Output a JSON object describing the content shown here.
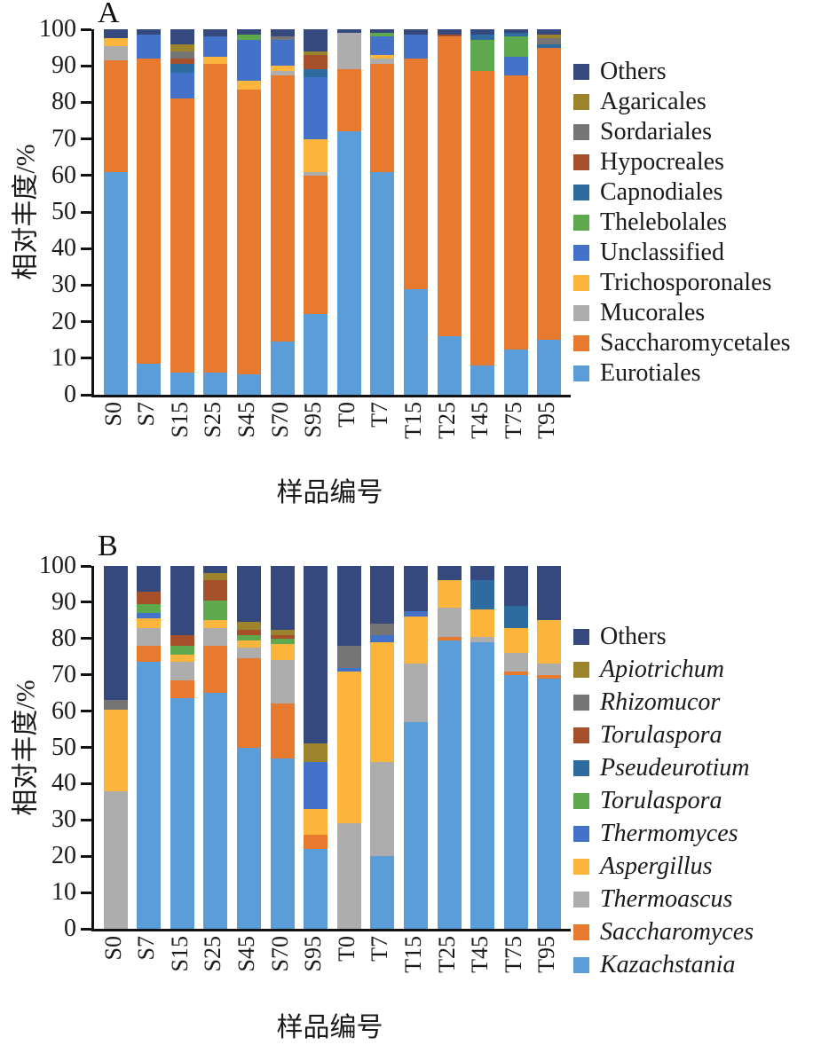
{
  "colors": {
    "navy": "#35497F",
    "olive": "#9C842C",
    "darkgray": "#757575",
    "brick": "#A5502B",
    "steel": "#2E6B9F",
    "green": "#5EA84E",
    "blue": "#4372C8",
    "amber": "#FBB43C",
    "lightgray": "#ADADAD",
    "orange": "#E87A30",
    "lightblue": "#5B9DD8",
    "axis": "#111111"
  },
  "chart_data": [
    {
      "type": "bar",
      "stacked": true,
      "panel_label": "A",
      "ylabel": "相对丰度/%",
      "xlabel": "样品编号",
      "ylim": [
        0,
        100
      ],
      "yticks": [
        0,
        10,
        20,
        30,
        40,
        50,
        60,
        70,
        80,
        90,
        100
      ],
      "grid": false,
      "legend_position": "right",
      "categories": [
        "S0",
        "S7",
        "S15",
        "S25",
        "S45",
        "S70",
        "S95",
        "T0",
        "T7",
        "T15",
        "T25",
        "T45",
        "T75",
        "T95"
      ],
      "series_bottom_to_top": [
        {
          "name": "Eurotiales",
          "color": "lightblue",
          "italic": false,
          "values": [
            61,
            8.5,
            6,
            6,
            5.5,
            14.5,
            22,
            72,
            61,
            29,
            16,
            8,
            12.5,
            15
          ]
        },
        {
          "name": "Saccharomycetales",
          "color": "orange",
          "italic": false,
          "values": [
            30.5,
            83.5,
            75,
            84.5,
            78,
            73,
            38,
            17,
            29.5,
            63,
            82,
            80.5,
            75,
            80
          ]
        },
        {
          "name": "Mucorales",
          "color": "lightgray",
          "italic": false,
          "values": [
            4,
            0,
            0,
            0,
            0,
            1,
            1,
            10,
            1.5,
            0,
            0,
            0,
            0,
            0
          ]
        },
        {
          "name": "Trichosporonales",
          "color": "amber",
          "italic": false,
          "values": [
            2,
            0,
            0,
            2,
            2.5,
            1.5,
            9,
            0,
            1,
            0,
            0,
            0,
            0,
            0
          ]
        },
        {
          "name": "Unclassified",
          "color": "blue",
          "italic": false,
          "values": [
            0,
            6.5,
            7,
            5.5,
            11,
            7,
            17,
            0,
            5,
            6.5,
            0,
            0,
            5,
            0
          ]
        },
        {
          "name": "Thelebolales",
          "color": "green",
          "italic": false,
          "values": [
            0,
            0,
            0,
            0,
            1.5,
            0,
            0,
            0,
            1,
            0,
            0,
            8.5,
            5.5,
            0
          ]
        },
        {
          "name": "Capnodiales",
          "color": "steel",
          "italic": false,
          "values": [
            0,
            0,
            2.5,
            0,
            0,
            0,
            2,
            0,
            0,
            0,
            0,
            1.5,
            1,
            1
          ]
        },
        {
          "name": "Hypocreales",
          "color": "brick",
          "italic": false,
          "values": [
            0,
            0,
            1.5,
            0,
            0,
            0,
            4,
            0,
            0,
            0,
            0.5,
            0,
            0,
            0
          ]
        },
        {
          "name": "Sordariales",
          "color": "darkgray",
          "italic": false,
          "values": [
            0,
            0,
            2,
            0,
            0,
            1,
            0,
            0,
            0,
            0,
            0,
            0,
            0,
            1.5
          ]
        },
        {
          "name": "Agaricales",
          "color": "olive",
          "italic": false,
          "values": [
            0,
            0,
            2,
            0,
            0,
            0,
            1,
            0,
            0,
            0,
            0,
            0,
            0,
            1
          ]
        },
        {
          "name": "Others",
          "color": "navy",
          "italic": false,
          "values": [
            2.5,
            1.5,
            4,
            2,
            1.5,
            2,
            6,
            1,
            1,
            1.5,
            1.5,
            1.5,
            1,
            1.5
          ]
        }
      ]
    },
    {
      "type": "bar",
      "stacked": true,
      "panel_label": "B",
      "ylabel": "相对丰度/%",
      "xlabel": "样品编号",
      "ylim": [
        0,
        100
      ],
      "yticks": [
        0,
        10,
        20,
        30,
        40,
        50,
        60,
        70,
        80,
        90,
        100
      ],
      "grid": false,
      "legend_position": "right",
      "categories": [
        "S0",
        "S7",
        "S15",
        "S25",
        "S45",
        "S70",
        "S95",
        "T0",
        "T7",
        "T15",
        "T25",
        "T45",
        "T75",
        "T95"
      ],
      "series_bottom_to_top": [
        {
          "name": "Kazachstania",
          "color": "lightblue",
          "italic": true,
          "values": [
            0,
            73.5,
            63.5,
            65,
            50,
            47,
            22,
            0,
            20,
            57,
            79.5,
            79,
            70,
            69
          ]
        },
        {
          "name": "Saccharomyces",
          "color": "orange",
          "italic": true,
          "values": [
            0,
            4.5,
            5,
            13,
            24.5,
            15,
            4,
            0,
            0,
            0,
            1,
            0,
            1,
            1
          ]
        },
        {
          "name": "Thermoascus",
          "color": "lightgray",
          "italic": true,
          "values": [
            38,
            5,
            5,
            5,
            3,
            12,
            0,
            29,
            26,
            16,
            8,
            1.5,
            5,
            3
          ]
        },
        {
          "name": "Aspergillus",
          "color": "amber",
          "italic": true,
          "values": [
            22.5,
            2.5,
            2,
            2,
            2,
            4.5,
            7,
            42,
            33,
            13,
            7.5,
            7.5,
            7,
            12
          ]
        },
        {
          "name": "Thermomyces",
          "color": "blue",
          "italic": true,
          "values": [
            0,
            1.5,
            0,
            0,
            0,
            0,
            13,
            1,
            2,
            1.5,
            0,
            0,
            0,
            0
          ]
        },
        {
          "name": "Torulaspora",
          "color": "green",
          "italic": true,
          "values": [
            0,
            2.5,
            2.5,
            5.5,
            1.5,
            1.5,
            0,
            0,
            0,
            0,
            0,
            0,
            0,
            0
          ]
        },
        {
          "name": "Pseudeurotium",
          "color": "steel",
          "italic": true,
          "values": [
            0,
            0,
            0,
            0,
            0,
            0,
            0,
            0,
            0,
            0,
            0,
            8,
            6,
            0
          ]
        },
        {
          "name": "Torulaspora",
          "color": "brick",
          "italic": true,
          "values": [
            0,
            3.5,
            3,
            5.5,
            1.5,
            1,
            0,
            0,
            0,
            0,
            0,
            0,
            0,
            0
          ]
        },
        {
          "name": "Rhizomucor",
          "color": "darkgray",
          "italic": true,
          "values": [
            2.5,
            0,
            0,
            0,
            0,
            0,
            0,
            6,
            3,
            0,
            0,
            0,
            0,
            0
          ]
        },
        {
          "name": "Apiotrichum",
          "color": "olive",
          "italic": true,
          "values": [
            0,
            0,
            0,
            2,
            2,
            1.5,
            5,
            0,
            0,
            0,
            0,
            0,
            0,
            0
          ]
        },
        {
          "name": "Others",
          "color": "navy",
          "italic": false,
          "values": [
            37,
            7,
            19,
            2,
            15.5,
            17.5,
            49,
            22,
            16,
            12.5,
            4,
            4,
            11,
            15
          ]
        }
      ]
    }
  ]
}
